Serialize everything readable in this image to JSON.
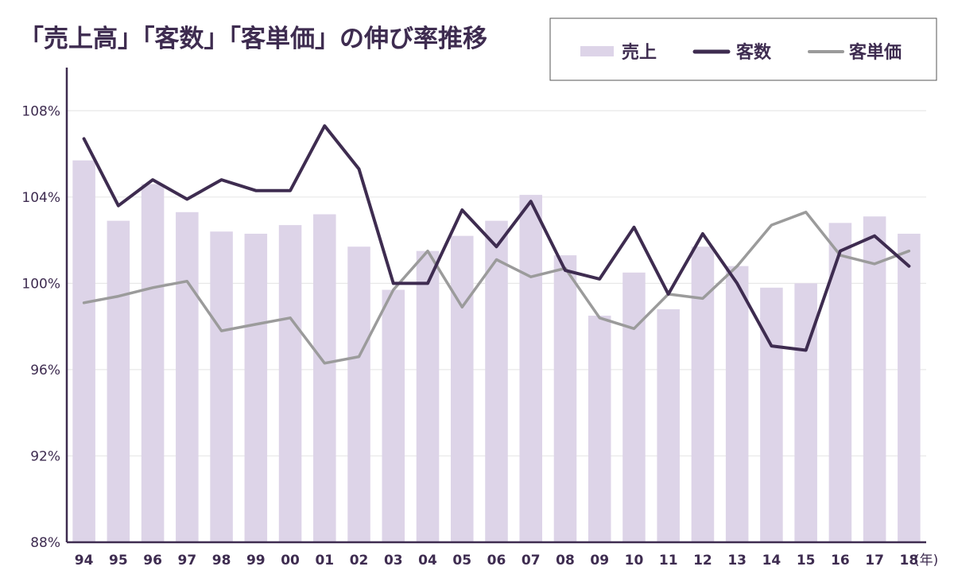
{
  "chart_data": {
    "type": "bar+line",
    "title": "「売上高」「客数」「客単価」の伸び率推移",
    "x_unit": "(年)",
    "categories": [
      "94",
      "95",
      "96",
      "97",
      "98",
      "99",
      "00",
      "01",
      "02",
      "03",
      "04",
      "05",
      "06",
      "07",
      "08",
      "09",
      "10",
      "11",
      "12",
      "13",
      "14",
      "15",
      "16",
      "17",
      "18"
    ],
    "ylim": [
      88,
      110
    ],
    "yticks": [
      88,
      92,
      96,
      100,
      104,
      108
    ],
    "ytick_labels": [
      "88%",
      "92%",
      "96%",
      "100%",
      "104%",
      "108%"
    ],
    "grid": true,
    "legend_position": "top-right",
    "series": [
      {
        "name": "売上",
        "kind": "bar",
        "color": "#ddd4e8",
        "values": [
          105.7,
          102.9,
          104.6,
          103.3,
          102.4,
          102.3,
          102.7,
          103.2,
          101.7,
          99.7,
          101.5,
          102.2,
          102.9,
          104.1,
          101.3,
          98.5,
          100.5,
          98.8,
          101.7,
          100.8,
          99.8,
          100.0,
          102.8,
          103.1,
          102.3
        ]
      },
      {
        "name": "客数",
        "kind": "line",
        "color": "#3e2c50",
        "values": [
          106.7,
          103.6,
          104.8,
          103.9,
          104.8,
          104.3,
          104.3,
          107.3,
          105.3,
          100.0,
          100.0,
          103.4,
          101.7,
          103.8,
          100.6,
          100.2,
          102.6,
          99.5,
          102.3,
          100.0,
          97.1,
          96.9,
          101.5,
          102.2,
          100.8
        ]
      },
      {
        "name": "客単価",
        "kind": "line",
        "color": "#9b9b9b",
        "values": [
          99.1,
          99.4,
          99.8,
          100.1,
          97.8,
          98.1,
          98.4,
          96.3,
          96.6,
          99.7,
          101.5,
          98.9,
          101.1,
          100.3,
          100.7,
          98.4,
          97.9,
          99.5,
          99.3,
          100.8,
          102.7,
          103.3,
          101.3,
          100.9,
          101.5
        ]
      }
    ]
  }
}
